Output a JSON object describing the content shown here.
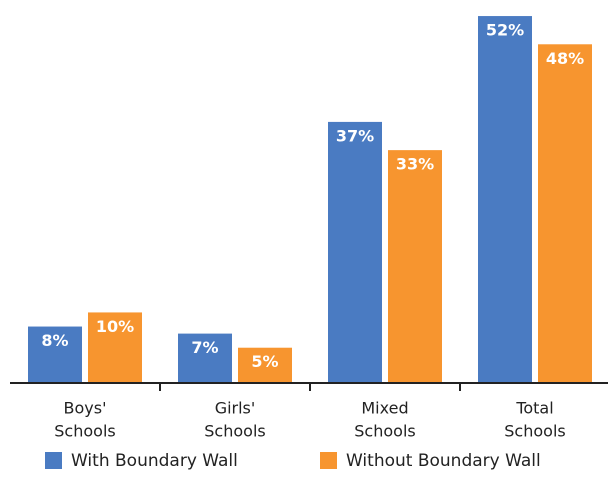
{
  "chart_data": {
    "type": "bar",
    "categories": [
      [
        "Boys'",
        "Schools"
      ],
      [
        "Girls'",
        "Schools"
      ],
      [
        "Mixed",
        "Schools"
      ],
      [
        "Total",
        "Schools"
      ]
    ],
    "series": [
      {
        "name": "With Boundary Wall",
        "color": "#4a7bc2",
        "values": [
          8,
          7,
          37,
          52
        ],
        "value_labels": [
          "8%",
          "7%",
          "37%",
          "52%"
        ]
      },
      {
        "name": "Without Boundary Wall",
        "color": "#f7952f",
        "values": [
          10,
          5,
          33,
          48
        ],
        "value_labels": [
          "10%",
          "5%",
          "33%",
          "48%"
        ]
      }
    ],
    "ylim": [
      0,
      53
    ]
  }
}
